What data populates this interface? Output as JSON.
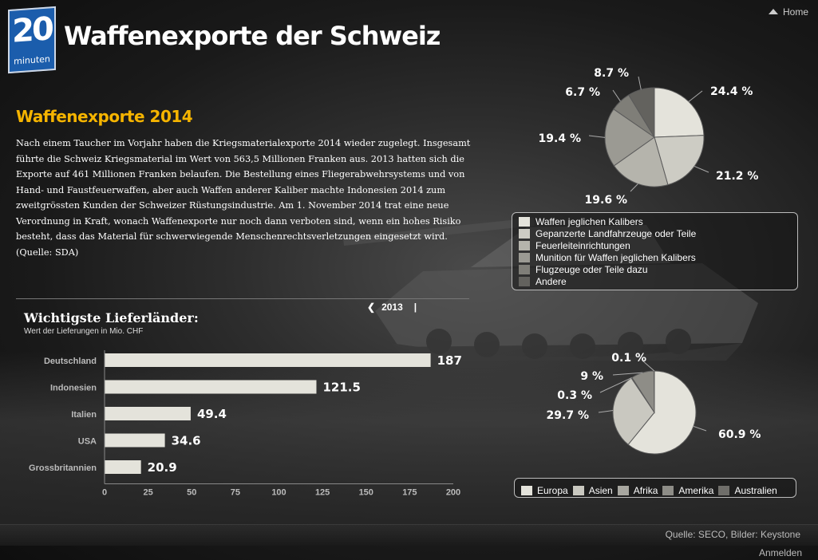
{
  "header": {
    "title": "Waffenexporte der Schweiz",
    "logo_number": "20",
    "logo_word": "minuten",
    "home_label": "Home"
  },
  "article": {
    "heading": "Waffenexporte 2014",
    "text": "Nach einem Taucher im Vorjahr haben die Kriegsmaterialexporte 2014 wieder zugelegt. Insgesamt führte die Schweiz Kriegsmaterial im Wert von 563,5 Millionen Franken aus. 2013 hatten sich die Exporte auf 461 Millionen Franken belaufen. Die Bestellung eines Fliegerabwehrsystems und von Hand- und Faustfeuerwaffen, aber auch Waffen anderer Kaliber machte Indonesien 2014 zum zweitgrössten Kunden der Schweizer Rüstungsindustrie. Am 1. November 2014 trat eine neue Verordnung in Kraft, wonach Waffenexporte nur noch dann verboten sind, wenn ein hohes Risiko besteht, dass das Material für schwerwiegende Menschenrechtsverletzungen eingesetzt wird. (Quelle: SDA)"
  },
  "nav": {
    "prev_year": "2013",
    "separator": "|"
  },
  "footer": {
    "source": "Quelle: SECO, Bilder: Keystone",
    "login": "Anmelden"
  },
  "chart_data": [
    {
      "type": "bar",
      "orientation": "horizontal",
      "title": "Wichtigste Lieferländer:",
      "subtitle": "Wert der Lieferungen in Mio. CHF",
      "categories": [
        "Deutschland",
        "Indonesien",
        "Italien",
        "USA",
        "Grossbritannien"
      ],
      "values": [
        187,
        121.5,
        49.4,
        34.6,
        20.9
      ],
      "value_labels": [
        "187",
        "121.5",
        "49.4",
        "34.6",
        "20.9"
      ],
      "xlim": [
        0,
        200
      ],
      "xticks": [
        0,
        25,
        50,
        75,
        100,
        125,
        150,
        175,
        200
      ],
      "color": "#e4e3db"
    },
    {
      "type": "pie",
      "categories": [
        "Waffen jeglichen Kalibers",
        "Gepanzerte Landfahrzeuge oder Teile",
        "Feuerleiteinrichtungen",
        "Munition für Waffen jeglichen Kalibers",
        "Flugzeuge oder Teile dazu",
        "Andere"
      ],
      "values": [
        24.4,
        21.2,
        19.6,
        19.4,
        6.7,
        8.7
      ],
      "labels": [
        "24.4 %",
        "21.2 %",
        "19.6 %",
        "19.4 %",
        "6.7 %",
        "8.7 %"
      ],
      "colors": [
        "#e4e3db",
        "#cdccc4",
        "#b5b4ac",
        "#9b9a93",
        "#7f7e78",
        "#63625e"
      ],
      "legend": "bottom"
    },
    {
      "type": "pie",
      "categories": [
        "Europa",
        "Asien",
        "Afrika",
        "Amerika",
        "Australien"
      ],
      "values": [
        60.9,
        29.7,
        0.3,
        9,
        0.1
      ],
      "labels": [
        "60.9 %",
        "29.7 %",
        "0.3 %",
        "9 %",
        "0.1 %"
      ],
      "colors": [
        "#e4e3db",
        "#c9c8c0",
        "#a8a7a0",
        "#8e8d87",
        "#6f6e6a"
      ],
      "legend": "bottom"
    }
  ]
}
